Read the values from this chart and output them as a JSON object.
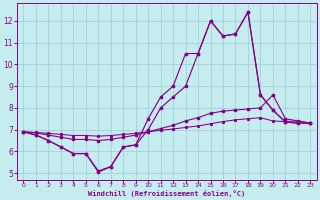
{
  "xlabel": "Windchill (Refroidissement éolien,°C)",
  "xlim": [
    -0.5,
    23.5
  ],
  "ylim": [
    4.7,
    12.8
  ],
  "xticks": [
    0,
    1,
    2,
    3,
    4,
    5,
    6,
    7,
    8,
    9,
    10,
    11,
    12,
    13,
    14,
    15,
    16,
    17,
    18,
    19,
    20,
    21,
    22,
    23
  ],
  "yticks": [
    5,
    6,
    7,
    8,
    9,
    10,
    11,
    12
  ],
  "bg_color": "#c5ecee",
  "grid_color": "#9ecdd1",
  "line_color": "#880088",
  "s1_x": [
    0,
    1,
    2,
    3,
    4,
    5,
    6,
    7,
    8,
    9,
    10,
    11,
    12,
    13,
    14,
    15,
    16,
    17,
    18,
    19,
    20,
    21,
    22,
    23
  ],
  "s1_y": [
    6.9,
    6.75,
    6.5,
    6.2,
    5.9,
    5.9,
    5.1,
    5.3,
    6.2,
    6.3,
    7.5,
    8.5,
    9.0,
    10.5,
    10.5,
    12.0,
    11.3,
    11.4,
    12.4,
    8.6,
    7.9,
    7.35,
    7.3,
    7.3
  ],
  "s2_x": [
    0,
    1,
    2,
    3,
    4,
    5,
    6,
    7,
    8,
    9,
    10,
    11,
    12,
    13,
    14,
    15,
    16,
    17,
    18,
    19,
    20,
    21,
    22,
    23
  ],
  "s2_y": [
    6.9,
    6.75,
    6.5,
    6.2,
    5.9,
    5.9,
    5.05,
    5.3,
    6.2,
    6.3,
    7.0,
    8.0,
    8.5,
    9.0,
    10.5,
    12.0,
    11.3,
    11.4,
    12.4,
    8.6,
    7.9,
    7.35,
    7.3,
    7.3
  ],
  "s3_x": [
    0,
    1,
    2,
    3,
    4,
    5,
    6,
    7,
    8,
    9,
    10,
    11,
    12,
    13,
    14,
    15,
    16,
    17,
    18,
    19,
    20,
    21,
    22,
    23
  ],
  "s3_y": [
    6.9,
    6.85,
    6.75,
    6.65,
    6.55,
    6.55,
    6.5,
    6.55,
    6.65,
    6.75,
    6.9,
    7.05,
    7.2,
    7.4,
    7.55,
    7.75,
    7.85,
    7.9,
    7.95,
    8.0,
    8.6,
    7.5,
    7.4,
    7.3
  ],
  "s4_x": [
    0,
    1,
    2,
    3,
    4,
    5,
    6,
    7,
    8,
    9,
    10,
    11,
    12,
    13,
    14,
    15,
    16,
    17,
    18,
    19,
    20,
    21,
    22,
    23
  ],
  "s4_y": [
    6.9,
    6.87,
    6.83,
    6.78,
    6.73,
    6.73,
    6.7,
    6.73,
    6.78,
    6.83,
    6.9,
    6.97,
    7.03,
    7.1,
    7.17,
    7.27,
    7.37,
    7.45,
    7.5,
    7.55,
    7.4,
    7.37,
    7.4,
    7.3
  ]
}
